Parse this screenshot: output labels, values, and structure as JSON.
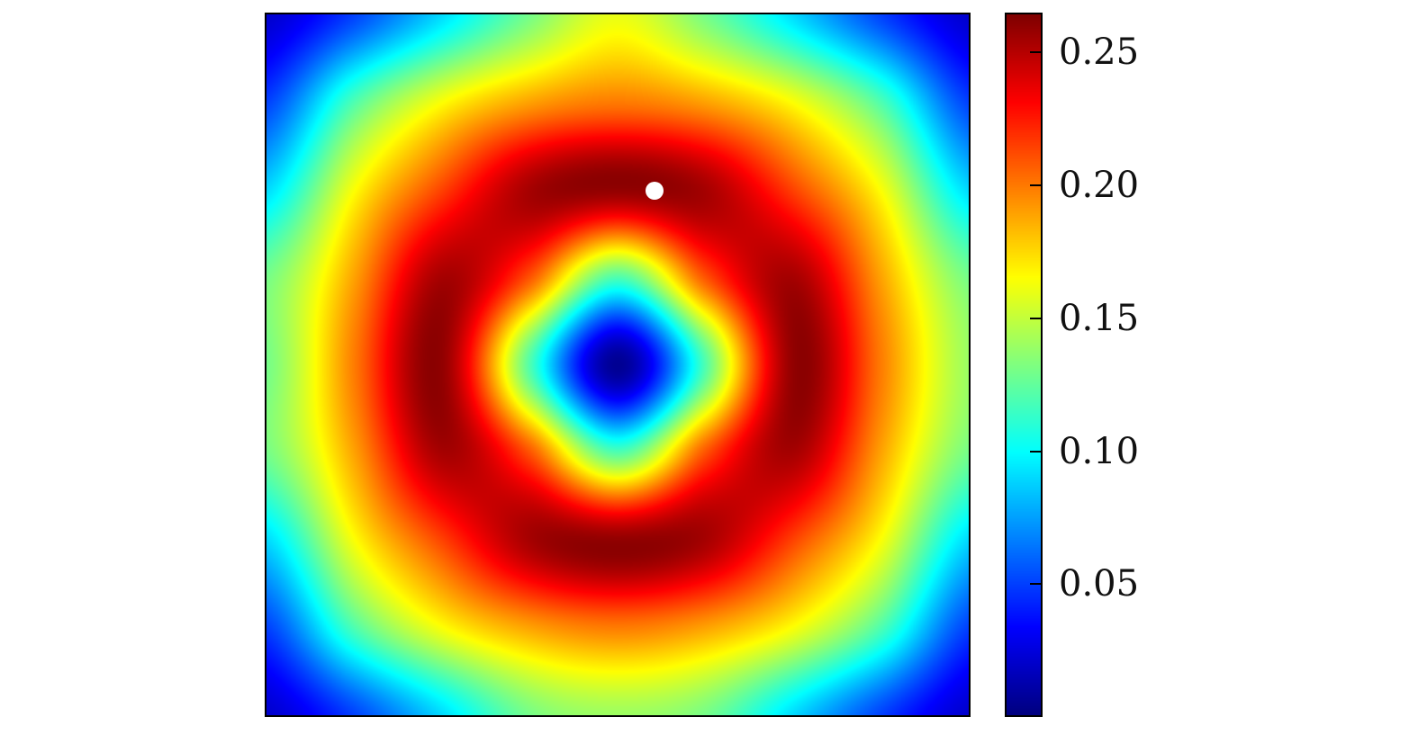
{
  "chart_data": {
    "type": "heatmap",
    "title": "",
    "xlabel": "",
    "ylabel": "",
    "colormap": "jet",
    "color_range": [
      0,
      0.265
    ],
    "colorbar": {
      "position": "right",
      "ticks": [
        0.05,
        0.1,
        0.15,
        0.2,
        0.25
      ],
      "tick_labels": [
        "0.05",
        "0.10",
        "0.15",
        "0.20",
        "0.25"
      ]
    },
    "grid_size": [
      9,
      9
    ],
    "values": [
      [
        0.02,
        0.05,
        0.09,
        0.13,
        0.16,
        0.13,
        0.09,
        0.05,
        0.02
      ],
      [
        0.05,
        0.12,
        0.165,
        0.19,
        0.2,
        0.19,
        0.165,
        0.12,
        0.05
      ],
      [
        0.09,
        0.165,
        0.215,
        0.255,
        0.26,
        0.255,
        0.215,
        0.165,
        0.09
      ],
      [
        0.13,
        0.19,
        0.255,
        0.21,
        0.12,
        0.21,
        0.255,
        0.19,
        0.13
      ],
      [
        0.13,
        0.2,
        0.26,
        0.12,
        0.005,
        0.12,
        0.26,
        0.2,
        0.14
      ],
      [
        0.13,
        0.19,
        0.255,
        0.21,
        0.12,
        0.21,
        0.255,
        0.19,
        0.13
      ],
      [
        0.09,
        0.165,
        0.215,
        0.255,
        0.26,
        0.255,
        0.215,
        0.165,
        0.09
      ],
      [
        0.05,
        0.12,
        0.165,
        0.19,
        0.2,
        0.19,
        0.165,
        0.12,
        0.05
      ],
      [
        0.02,
        0.05,
        0.09,
        0.13,
        0.14,
        0.13,
        0.09,
        0.05,
        0.02
      ]
    ],
    "marker": {
      "col": 4.42,
      "row": 2.01,
      "color": "#ffffff"
    }
  }
}
